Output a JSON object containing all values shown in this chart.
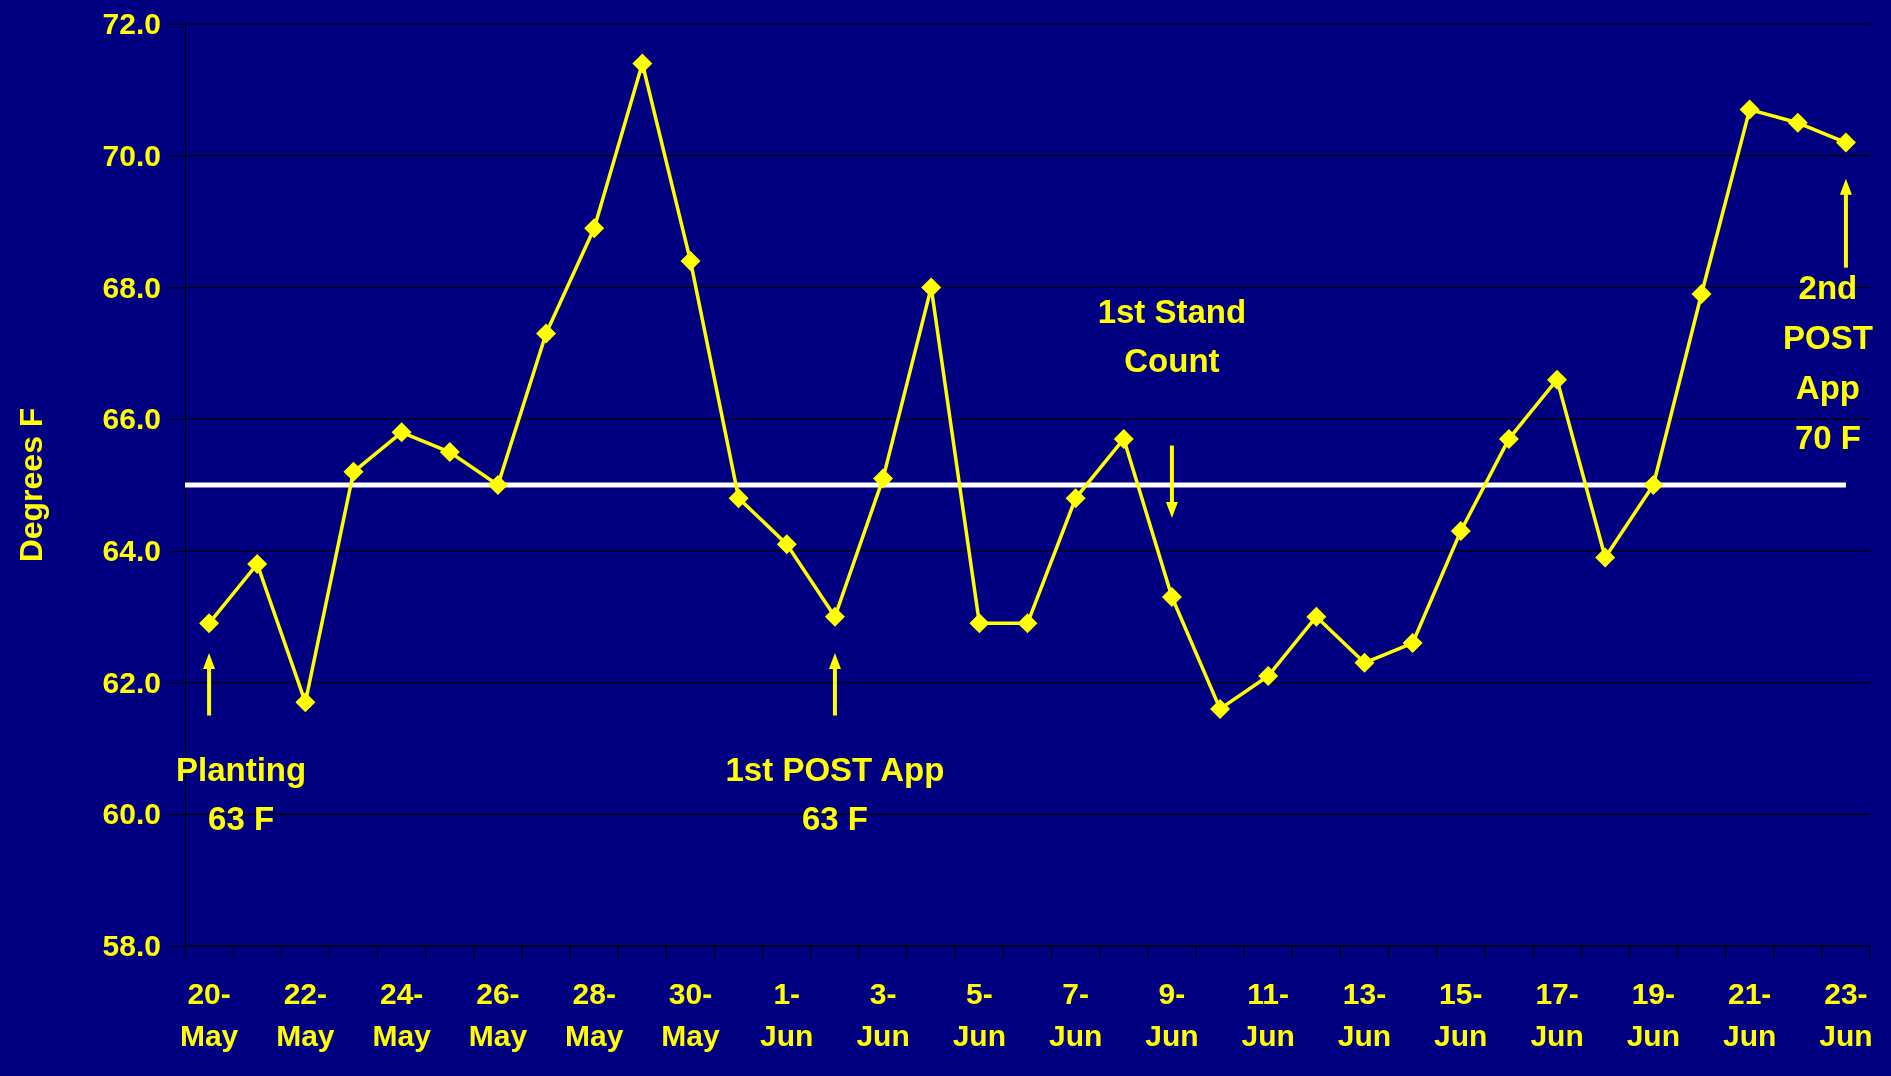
{
  "chart_data": {
    "type": "line",
    "ylabel": "Degrees F",
    "categories": [
      "20-May",
      null,
      "22-May",
      null,
      "24-May",
      null,
      "26-May",
      null,
      "28-May",
      null,
      "30-May",
      null,
      "1-Jun",
      null,
      "3-Jun",
      null,
      "5-Jun",
      null,
      "7-Jun",
      null,
      "9-Jun",
      null,
      "11-Jun",
      null,
      "13-Jun",
      null,
      "15-Jun",
      null,
      "17-Jun",
      null,
      "19-Jun",
      null,
      "21-Jun",
      null,
      "23-Jun"
    ],
    "series": [
      {
        "color": "#ffff00",
        "values": [
          62.9,
          63.8,
          61.7,
          65.2,
          65.8,
          65.5,
          65.0,
          67.3,
          68.9,
          71.4,
          68.4,
          64.8,
          64.1,
          63.0,
          65.1,
          68.0,
          62.9,
          62.9,
          64.8,
          65.7,
          63.3,
          61.6,
          62.1,
          63.0,
          62.3,
          62.6,
          64.3,
          65.7,
          66.6,
          63.9,
          65.0,
          67.9,
          70.7,
          70.5,
          70.2
        ]
      }
    ],
    "ylim": [
      58,
      72
    ],
    "yticks": [
      {
        "value": 58,
        "label": "58.0"
      },
      {
        "value": 60,
        "label": "60.0"
      },
      {
        "value": 62,
        "label": "62.0"
      },
      {
        "value": 64,
        "label": "64.0"
      },
      {
        "value": 66,
        "label": "66.0"
      },
      {
        "value": 68,
        "label": "68.0"
      },
      {
        "value": 70,
        "label": "70.0"
      },
      {
        "value": 72,
        "label": "72.0"
      }
    ],
    "grid": "y",
    "marker": "diamond",
    "line_style": "solid",
    "ref_lines": [
      {
        "axis": "y",
        "value": 65,
        "color": "#ffffff"
      }
    ],
    "annotations": [
      "Planting\n63 F",
      "1st POST App\n63 F",
      "1st Stand\nCount",
      "2nd\nPOST\nApp\n70 F"
    ]
  }
}
